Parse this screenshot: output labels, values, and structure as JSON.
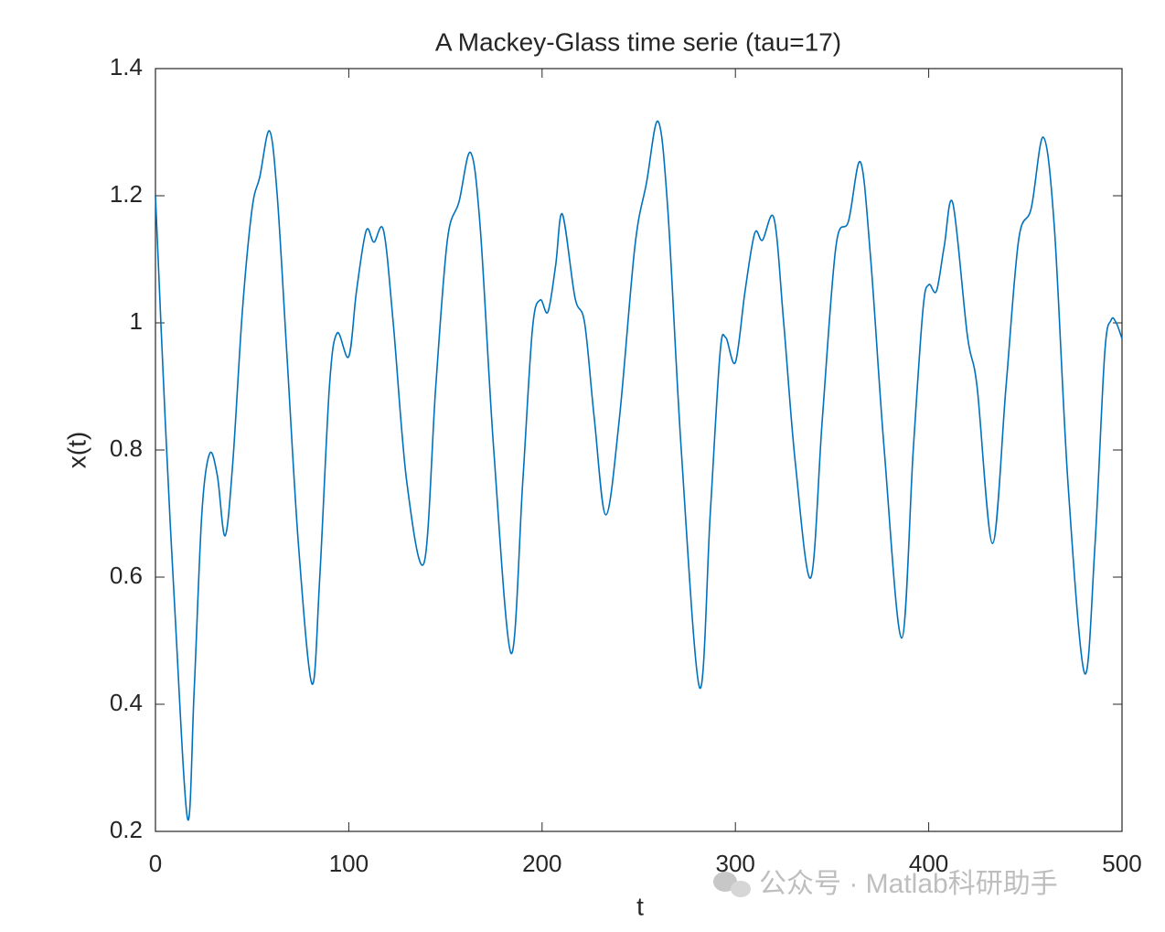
{
  "chart_data": {
    "type": "line",
    "title": "A Mackey-Glass time serie (tau=17)",
    "xlabel": "t",
    "ylabel": "x(t)",
    "watermark": "公众号 · Matlab科研助手",
    "x": [
      0,
      5,
      10,
      16.6,
      20,
      24,
      28,
      32,
      36,
      40,
      45,
      50,
      54,
      59,
      63,
      68,
      74,
      81,
      85,
      90,
      94,
      100,
      104,
      109,
      113,
      118,
      123,
      130,
      139,
      145,
      151,
      157,
      163,
      168,
      175,
      184,
      190,
      195,
      199,
      203,
      207,
      210.5,
      217,
      222,
      227,
      233,
      240,
      248,
      254,
      260,
      265,
      272,
      281.5,
      287,
      292,
      295,
      300,
      305,
      310,
      314,
      320,
      325,
      331,
      339,
      345,
      352,
      358.5,
      364.7,
      370,
      377,
      386,
      392,
      397,
      400,
      404,
      408,
      412.5,
      420,
      425,
      433,
      440,
      446.5,
      453,
      459.3,
      465,
      472,
      480.6,
      486,
      491,
      494.3,
      497,
      500
    ],
    "series": [
      {
        "name": "x(t)",
        "color": "#0072BD",
        "values": [
          1.2,
          0.85,
          0.55,
          0.22,
          0.42,
          0.7,
          0.794,
          0.76,
          0.665,
          0.78,
          1.02,
          1.18,
          1.23,
          1.302,
          1.2,
          0.95,
          0.65,
          0.432,
          0.6,
          0.9,
          0.984,
          0.947,
          1.05,
          1.145,
          1.127,
          1.145,
          1.0,
          0.75,
          0.623,
          0.9,
          1.13,
          1.19,
          1.268,
          1.15,
          0.8,
          0.48,
          0.75,
          0.99,
          1.036,
          1.017,
          1.09,
          1.171,
          1.04,
          1.0,
          0.85,
          0.698,
          0.85,
          1.12,
          1.22,
          1.317,
          1.18,
          0.8,
          0.426,
          0.7,
          0.95,
          0.977,
          0.938,
          1.05,
          1.141,
          1.13,
          1.164,
          1.0,
          0.78,
          0.599,
          0.85,
          1.12,
          1.16,
          1.253,
          1.1,
          0.8,
          0.504,
          0.8,
          1.02,
          1.06,
          1.05,
          1.12,
          1.188,
          0.98,
          0.9,
          0.653,
          0.9,
          1.13,
          1.18,
          1.292,
          1.15,
          0.75,
          0.449,
          0.65,
          0.95,
          1.004,
          1.0,
          0.975
        ]
      }
    ],
    "xlim": [
      0,
      500
    ],
    "xticks": [
      0,
      100,
      200,
      300,
      400,
      500
    ],
    "ylim": [
      0.2,
      1.4
    ],
    "yticks": [
      0.2,
      0.4,
      0.6,
      0.8,
      1,
      1.2,
      1.4
    ]
  }
}
